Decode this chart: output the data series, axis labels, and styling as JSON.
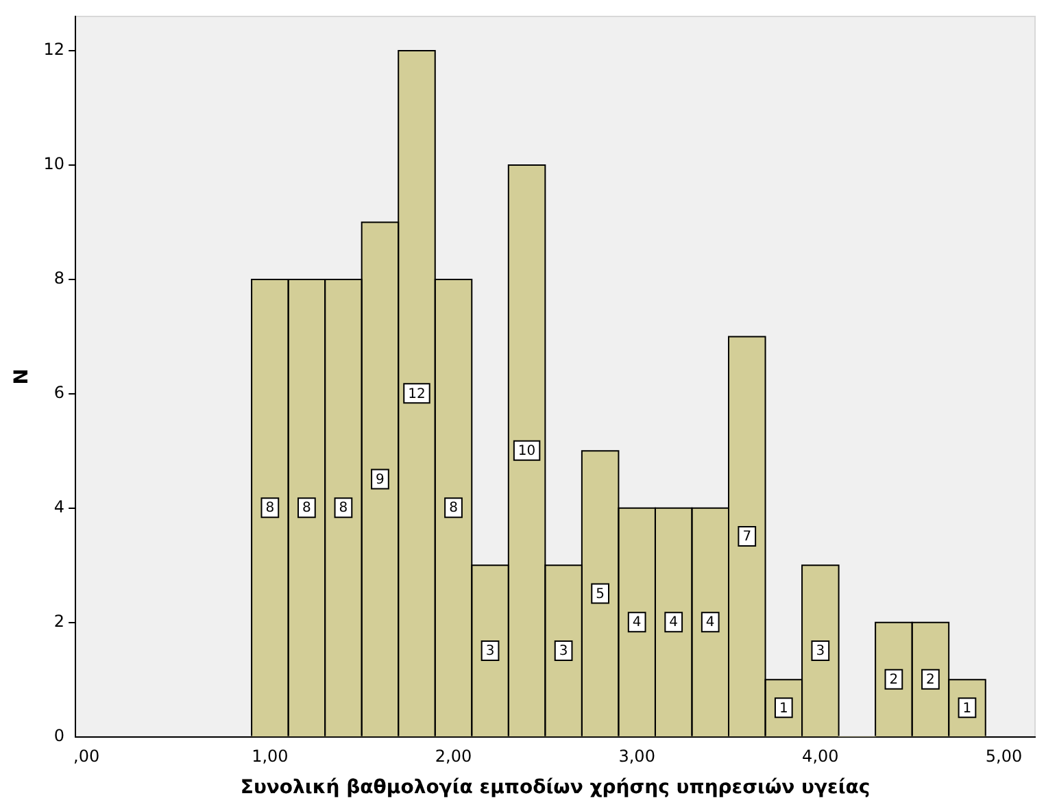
{
  "chart_data": {
    "type": "histogram",
    "xlabel": "Συνολική βαθμολογία εμποδίων χρήσης υπηρεσιών υγείας",
    "ylabel": "N",
    "bins": [
      0.9,
      1.1,
      1.3,
      1.5,
      1.7,
      1.9,
      2.1,
      2.3,
      2.5,
      2.7,
      2.9,
      3.1,
      3.3,
      3.5,
      3.7,
      3.9,
      4.1,
      4.3,
      4.5,
      4.7,
      4.9
    ],
    "values": [
      8,
      8,
      8,
      9,
      12,
      8,
      3,
      10,
      3,
      5,
      4,
      4,
      4,
      7,
      1,
      3,
      0,
      2,
      2,
      1
    ],
    "value_labels": [
      "8",
      "8",
      "8",
      "9",
      "12",
      "8",
      "3",
      "10",
      "3",
      "5",
      "4",
      "4",
      "4",
      "7",
      "1",
      "3",
      null,
      "2",
      "2",
      "1"
    ],
    "color": "#d3ce97",
    "xlim": [
      -0.06,
      5.17
    ],
    "xticks": [
      {
        "value": 0,
        "label": ",00"
      },
      {
        "value": 1,
        "label": "1,00"
      },
      {
        "value": 2,
        "label": "2,00"
      },
      {
        "value": 3,
        "label": "3,00"
      },
      {
        "value": 4,
        "label": "4,00"
      },
      {
        "value": 5,
        "label": "5,00"
      }
    ],
    "ylim": [
      0,
      12.6
    ],
    "yticks": [
      0,
      2,
      4,
      6,
      8,
      10,
      12
    ],
    "grid": false,
    "legend": false
  }
}
